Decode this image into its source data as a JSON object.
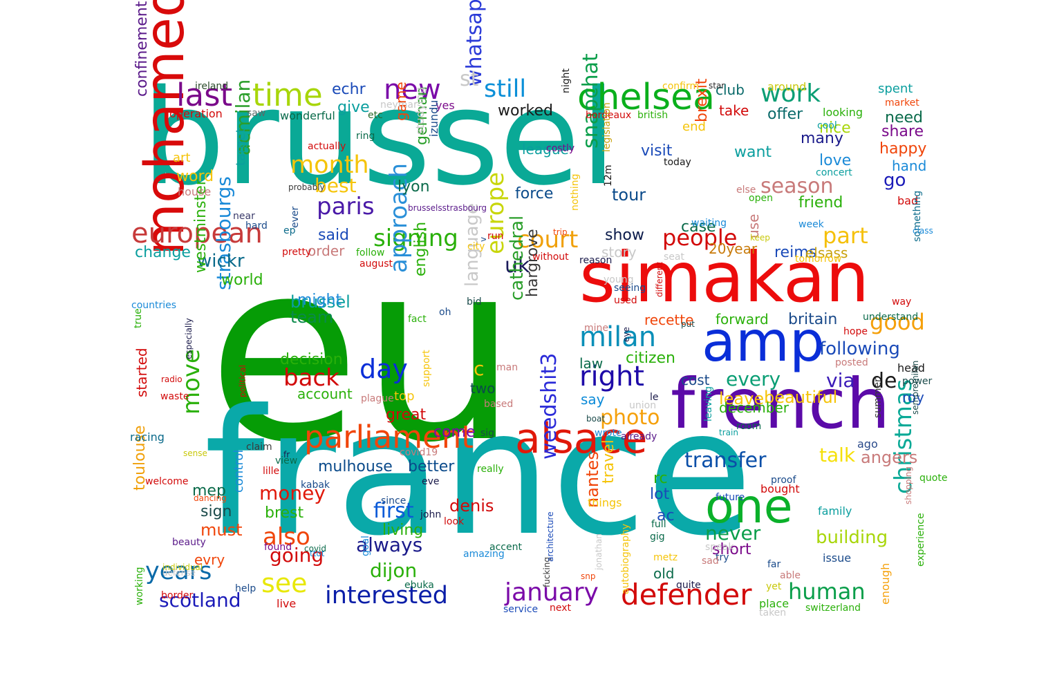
{
  "words": [
    {
      "text": "eu",
      "color": "#069c06"
    },
    {
      "text": "brussel",
      "color": "#0aa996"
    },
    {
      "text": "france",
      "color": "#0aa9a9"
    },
    {
      "text": "simakan",
      "color": "#ec0c0c"
    },
    {
      "text": "french",
      "color": "#5b0aa8"
    },
    {
      "text": "amp",
      "color": "#0a2ed8"
    },
    {
      "text": "mohamed",
      "color": "#d80a0a"
    },
    {
      "text": "alsace",
      "color": "#e0180a"
    },
    {
      "text": "parliament",
      "color": "#f0450a"
    },
    {
      "text": "one",
      "color": "#0ab02a"
    },
    {
      "text": "chelsea",
      "color": "#0aaf1c"
    },
    {
      "text": "european",
      "color": "#c73a3a"
    },
    {
      "text": "defender",
      "color": "#d20a0a"
    },
    {
      "text": "interested",
      "color": "#0a1ea8"
    },
    {
      "text": "january",
      "color": "#7a0aa8"
    },
    {
      "text": "milan",
      "color": "#0a8fb8"
    },
    {
      "text": "right",
      "color": "#1e0aa8"
    },
    {
      "text": "transfer",
      "color": "#0a4fa8"
    },
    {
      "text": "years",
      "color": "#0a6aa8"
    },
    {
      "text": "last",
      "color": "#7a0a8a"
    },
    {
      "text": "time",
      "color": "#a8d60a"
    },
    {
      "text": "new",
      "color": "#7a0aa8"
    },
    {
      "text": "still",
      "color": "#0a8fd8"
    },
    {
      "text": "work",
      "color": "#0a9e74"
    },
    {
      "text": "signing",
      "color": "#2ab00a"
    },
    {
      "text": "court",
      "color": "#f0a00a"
    },
    {
      "text": "people",
      "color": "#d20a0a"
    },
    {
      "text": "part",
      "color": "#f5c00a"
    },
    {
      "text": "season",
      "color": "#c87a7a"
    },
    {
      "text": "month",
      "color": "#f5c40a"
    },
    {
      "text": "best",
      "color": "#f5c40a"
    },
    {
      "text": "paris",
      "color": "#4a1aa8"
    },
    {
      "text": "day",
      "color": "#0a2ed8"
    },
    {
      "text": "back",
      "color": "#d20a0a"
    },
    {
      "text": "europe",
      "color": "#c8d60a"
    },
    {
      "text": "approach",
      "color": "#2a8fd8"
    },
    {
      "text": "whatsapp",
      "color": "#2a3ad8"
    },
    {
      "text": "snapchat",
      "color": "#0a9e4a"
    },
    {
      "text": "uk",
      "color": "#1a1a5a"
    },
    {
      "text": "photo",
      "color": "#f5a00a"
    },
    {
      "text": "see",
      "color": "#e8e80a"
    },
    {
      "text": "first",
      "color": "#0a5ad8"
    },
    {
      "text": "also",
      "color": "#f0450a"
    },
    {
      "text": "going",
      "color": "#d20a0a"
    },
    {
      "text": "money",
      "color": "#e0180a"
    },
    {
      "text": "always",
      "color": "#1a1a8a"
    },
    {
      "text": "dijon",
      "color": "#2ab00a"
    },
    {
      "text": "scotland",
      "color": "#1a1ab8"
    },
    {
      "text": "human",
      "color": "#0a9e4a"
    },
    {
      "text": "christmas",
      "color": "#0aa996"
    },
    {
      "text": "good",
      "color": "#f5a00a"
    },
    {
      "text": "following",
      "color": "#1a4ab8"
    },
    {
      "text": "weedshit3",
      "color": "#2a2ad8"
    },
    {
      "text": "move",
      "color": "#2ab00a"
    },
    {
      "text": "strasbourgs",
      "color": "#1a8ad8"
    },
    {
      "text": "acmilan",
      "color": "#2a9e2a"
    },
    {
      "text": "wickr",
      "color": "#0a6a8a"
    },
    {
      "text": "brussel",
      "color": "#0a9e9e"
    },
    {
      "text": "talk",
      "color": "#f5e00a"
    },
    {
      "text": "every",
      "color": "#0a9e74"
    },
    {
      "text": "via",
      "color": "#3a1ab8"
    },
    {
      "text": "beautiful",
      "color": "#f5c40a"
    },
    {
      "text": "leave",
      "color": "#f5c40a"
    },
    {
      "text": "never",
      "color": "#0a9e4a"
    },
    {
      "text": "short",
      "color": "#7a0a8a"
    },
    {
      "text": "building",
      "color": "#a8d60a"
    },
    {
      "text": "angers",
      "color": "#c87a7a"
    },
    {
      "text": "confinement",
      "color": "#5a1a8a"
    },
    {
      "text": "toulouse",
      "color": "#f0a00a"
    },
    {
      "text": "must",
      "color": "#f0450a"
    },
    {
      "text": "brest",
      "color": "#2ab00a"
    },
    {
      "text": "sign",
      "color": "#1a4a4a"
    },
    {
      "text": "living",
      "color": "#2ab00a"
    },
    {
      "text": "denis",
      "color": "#d20a0a"
    },
    {
      "text": "nantes",
      "color": "#f0450a"
    },
    {
      "text": "travel",
      "color": "#f5c40a"
    },
    {
      "text": "ac",
      "color": "#1a4ab8"
    },
    {
      "text": "lot",
      "color": "#1a4ab8"
    },
    {
      "text": "old",
      "color": "#0a6a4a"
    },
    {
      "text": "rc",
      "color": "#2ab00a"
    },
    {
      "text": "great",
      "color": "#d20a0a"
    },
    {
      "text": "mulhouse",
      "color": "#0a4a8a"
    },
    {
      "text": "better",
      "color": "#0a4a8a"
    },
    {
      "text": "come",
      "color": "#7a0aa8"
    },
    {
      "text": "two",
      "color": "#0a4a4a"
    },
    {
      "text": "top",
      "color": "#f5c40a"
    },
    {
      "text": "account",
      "color": "#2ab00a"
    },
    {
      "text": "decision",
      "color": "#2ab00a"
    },
    {
      "text": "team",
      "color": "#0a8a4a"
    },
    {
      "text": "might",
      "color": "#1a8ad8"
    },
    {
      "text": "cathedral",
      "color": "#2a9e2a"
    },
    {
      "text": "hargrove",
      "color": "#3a3a3a"
    },
    {
      "text": "language",
      "color": "#c8c8c8"
    },
    {
      "text": "english",
      "color": "#2ab00a"
    },
    {
      "text": "world",
      "color": "#2ab00a"
    },
    {
      "text": "westminster",
      "color": "#2ab00a"
    },
    {
      "text": "change",
      "color": "#0a9e9e"
    },
    {
      "text": "said",
      "color": "#1a4ab8"
    },
    {
      "text": "order",
      "color": "#c87a7a"
    },
    {
      "text": "target",
      "color": "#0a9e9e"
    },
    {
      "text": "lyon",
      "color": "#0a6a4a"
    },
    {
      "text": "german",
      "color": "#2a9e2a"
    },
    {
      "text": "give",
      "color": "#0a9e9e"
    },
    {
      "text": "echr",
      "color": "#1a4ab8"
    },
    {
      "text": "worked",
      "color": "#1a1a1a"
    },
    {
      "text": "league",
      "color": "#0a9e9e"
    },
    {
      "text": "force",
      "color": "#0a4a8a"
    },
    {
      "text": "tour",
      "color": "#0a4a8a"
    },
    {
      "text": "visit",
      "color": "#1a4ab8"
    },
    {
      "text": "show",
      "color": "#0a1a4a"
    },
    {
      "text": "story",
      "color": "#c8c8c8"
    },
    {
      "text": "brexit",
      "color": "#f0450a"
    },
    {
      "text": "case",
      "color": "#0a6a4a"
    },
    {
      "text": "nice",
      "color": "#a8d60a"
    },
    {
      "text": "many",
      "color": "#1a1a8a"
    },
    {
      "text": "love",
      "color": "#1a8ad8"
    },
    {
      "text": "go",
      "color": "#1a1ab8"
    },
    {
      "text": "want",
      "color": "#0a9e9e"
    },
    {
      "text": "friend",
      "color": "#2ab00a"
    },
    {
      "text": "reims",
      "color": "#1a4ab8"
    },
    {
      "text": "elsass",
      "color": "#c8a00a"
    },
    {
      "text": "20year",
      "color": "#c87a0a"
    },
    {
      "text": "use",
      "color": "#c87a7a"
    },
    {
      "text": "recette",
      "color": "#f0450a"
    },
    {
      "text": "forward",
      "color": "#2ab00a"
    },
    {
      "text": "britain",
      "color": "#1a4a8a"
    },
    {
      "text": "citizen",
      "color": "#2ab00a"
    },
    {
      "text": "law",
      "color": "#0a6a4a"
    },
    {
      "text": "cost",
      "color": "#1a4a8a"
    },
    {
      "text": "say",
      "color": "#0a8ad8"
    },
    {
      "text": "de",
      "color": "#1a1a1a"
    },
    {
      "text": "roy",
      "color": "#1a4ab8"
    },
    {
      "text": "need",
      "color": "#0a6a4a"
    },
    {
      "text": "share",
      "color": "#7a0a8a"
    },
    {
      "text": "happy",
      "color": "#f0450a"
    },
    {
      "text": "hand",
      "color": "#1a8ad8"
    },
    {
      "text": "offer",
      "color": "#0a6a6a"
    },
    {
      "text": "club",
      "color": "#0a6a6a"
    },
    {
      "text": "take",
      "color": "#d20a0a"
    },
    {
      "text": "end",
      "color": "#f5c40a"
    },
    {
      "text": "art",
      "color": "#f5c40a"
    },
    {
      "text": "word",
      "color": "#f5c40a"
    },
    {
      "text": "house",
      "color": "#c87a7a"
    },
    {
      "text": "operation",
      "color": "#d20a0a"
    },
    {
      "text": "wonderful",
      "color": "#0a6a4a"
    },
    {
      "text": "actually",
      "color": "#d20a0a"
    },
    {
      "text": "ring",
      "color": "#0a6a4a"
    },
    {
      "text": "etc",
      "color": "#2a6a2a"
    },
    {
      "text": "yes",
      "color": "#7a0a8a"
    },
    {
      "text": "st",
      "color": "#c8c8c8"
    },
    {
      "text": "game",
      "color": "#f0450a"
    },
    {
      "text": "studying",
      "color": "#c8c8c8"
    },
    {
      "text": "izundu",
      "color": "#1a4a8a"
    },
    {
      "text": "neymar",
      "color": "#c8c8c8"
    },
    {
      "text": "ireland",
      "color": "#2a4a2a"
    },
    {
      "text": "saw",
      "color": "#5a6a6a"
    },
    {
      "text": "near",
      "color": "#3a3a6a"
    },
    {
      "text": "spent",
      "color": "#0a9e9e"
    },
    {
      "text": "market",
      "color": "#f0450a"
    },
    {
      "text": "around",
      "color": "#c8c80a"
    },
    {
      "text": "confirm",
      "color": "#f5c40a"
    },
    {
      "text": "star",
      "color": "#2a2a2a"
    },
    {
      "text": "bordeaux",
      "color": "#d20a0a"
    },
    {
      "text": "british",
      "color": "#2ab00a"
    },
    {
      "text": "looking",
      "color": "#2ab00a"
    },
    {
      "text": "cool",
      "color": "#0a9e9e"
    },
    {
      "text": "concert",
      "color": "#0a9e9e"
    },
    {
      "text": "today",
      "color": "#1a1a1a"
    },
    {
      "text": "costly",
      "color": "#7a0a8a"
    },
    {
      "text": "legislation",
      "color": "#c8a00a"
    },
    {
      "text": "12m",
      "color": "#1a1a1a"
    },
    {
      "text": "night",
      "color": "#1a1a1a"
    },
    {
      "text": "else",
      "color": "#c87a7a"
    },
    {
      "text": "open",
      "color": "#2ab00a"
    },
    {
      "text": "bad",
      "color": "#d20a0a"
    },
    {
      "text": "something",
      "color": "#0a6a8a"
    },
    {
      "text": "class",
      "color": "#1a8ad8"
    },
    {
      "text": "week",
      "color": "#1a8ad8"
    },
    {
      "text": "waiting",
      "color": "#1a8ad8"
    },
    {
      "text": "keep",
      "color": "#c8c80a"
    },
    {
      "text": "tomorrow",
      "color": "#f5c40a"
    },
    {
      "text": "way",
      "color": "#d20a0a"
    },
    {
      "text": "understand",
      "color": "#0a6a4a"
    },
    {
      "text": "hope",
      "color": "#d20a0a"
    },
    {
      "text": "posted",
      "color": "#c87a7a"
    },
    {
      "text": "head",
      "color": "#1a1a1a"
    },
    {
      "text": "power",
      "color": "#1a4a4a"
    },
    {
      "text": "sempremilan",
      "color": "#1a4a4a"
    },
    {
      "text": "summer",
      "color": "#3a3a3a"
    },
    {
      "text": "ago",
      "color": "#2a4a8a"
    },
    {
      "text": "quote",
      "color": "#2ab00a"
    },
    {
      "text": "shopping",
      "color": "#c87a7a"
    },
    {
      "text": "family",
      "color": "#0a9e9e"
    },
    {
      "text": "experience",
      "color": "#2ab00a"
    },
    {
      "text": "enough",
      "color": "#f5a00a"
    },
    {
      "text": "issue",
      "color": "#1a4a8a"
    },
    {
      "text": "able",
      "color": "#c87a7a"
    },
    {
      "text": "far",
      "color": "#1a4a8a"
    },
    {
      "text": "yet",
      "color": "#c8c80a"
    },
    {
      "text": "place",
      "color": "#2ab00a"
    },
    {
      "text": "taken",
      "color": "#c8c8c8"
    },
    {
      "text": "switzerland",
      "color": "#2ab00a"
    },
    {
      "text": "future",
      "color": "#1a4ab8"
    },
    {
      "text": "bought",
      "color": "#d20a0a"
    },
    {
      "text": "proof",
      "color": "#1a4a8a"
    },
    {
      "text": "try",
      "color": "#1a4a8a"
    },
    {
      "text": "sad",
      "color": "#c87a7a"
    },
    {
      "text": "speak",
      "color": "#c8c8c8"
    },
    {
      "text": "metz",
      "color": "#f5c40a"
    },
    {
      "text": "gig",
      "color": "#0a6a4a"
    },
    {
      "text": "full",
      "color": "#0a6a4a"
    },
    {
      "text": "quite",
      "color": "#1a1a4a"
    },
    {
      "text": "next",
      "color": "#d20a0a"
    },
    {
      "text": "service",
      "color": "#1a4ab8"
    },
    {
      "text": "autobiography",
      "color": "#f5c40a"
    },
    {
      "text": "jonathan",
      "color": "#c8c8c8"
    },
    {
      "text": "things",
      "color": "#f5c40a"
    },
    {
      "text": "snp",
      "color": "#f0450a"
    },
    {
      "text": "fucking",
      "color": "#3a3a3a"
    },
    {
      "text": "architecture",
      "color": "#1a4ab8"
    },
    {
      "text": "amazing",
      "color": "#1a8ad8"
    },
    {
      "text": "accent",
      "color": "#0a6a4a"
    },
    {
      "text": "ebuka",
      "color": "#0a6a4a"
    },
    {
      "text": "goal",
      "color": "#1a8ad8"
    },
    {
      "text": "since",
      "color": "#1a4a8a"
    },
    {
      "text": "look",
      "color": "#d20a0a"
    },
    {
      "text": "john",
      "color": "#1a1a4a"
    },
    {
      "text": "eve",
      "color": "#1a1a4a"
    },
    {
      "text": "really",
      "color": "#2ab00a"
    },
    {
      "text": "kabak",
      "color": "#1a4a8a"
    },
    {
      "text": "lille",
      "color": "#d20a0a"
    },
    {
      "text": "view",
      "color": "#0a6a4a"
    },
    {
      "text": "fr",
      "color": "#1a1a4a"
    },
    {
      "text": "ttot",
      "color": "#1a8ad8"
    },
    {
      "text": "found",
      "color": "#7a0a8a"
    },
    {
      "text": "covid",
      "color": "#0a6a4a"
    },
    {
      "text": "defense",
      "color": "#c8c8c8"
    },
    {
      "text": "live",
      "color": "#d20a0a"
    },
    {
      "text": "help",
      "color": "#1a4a8a"
    },
    {
      "text": "border",
      "color": "#d20a0a"
    },
    {
      "text": "working",
      "color": "#2ab00a"
    },
    {
      "text": "individual",
      "color": "#c8c80a"
    },
    {
      "text": "beauty",
      "color": "#5a1a8a"
    },
    {
      "text": "evry",
      "color": "#f0450a"
    },
    {
      "text": "mep",
      "color": "#0a6a4a"
    },
    {
      "text": "dancing",
      "color": "#f0450a"
    },
    {
      "text": "welcome",
      "color": "#d20a0a"
    },
    {
      "text": "control",
      "color": "#1a8ad8"
    },
    {
      "text": "sense",
      "color": "#c8c80a"
    },
    {
      "text": "racing",
      "color": "#0a6a8a"
    },
    {
      "text": "claim",
      "color": "#3a3a3a"
    },
    {
      "text": "political",
      "color": "#d20a0a"
    },
    {
      "text": "waste",
      "color": "#d20a0a"
    },
    {
      "text": "radio",
      "color": "#d20a0a"
    },
    {
      "text": "started",
      "color": "#d20a0a"
    },
    {
      "text": "especially",
      "color": "#1a1a4a"
    },
    {
      "text": "true",
      "color": "#2ab00a"
    },
    {
      "text": "countries",
      "color": "#1a8ad8"
    },
    {
      "text": "plague",
      "color": "#c87a7a"
    },
    {
      "text": "support",
      "color": "#f5c40a"
    },
    {
      "text": "fact",
      "color": "#2ab00a"
    },
    {
      "text": "c",
      "color": "#f5c40a"
    },
    {
      "text": "based",
      "color": "#c87a7a"
    },
    {
      "text": "covid19",
      "color": "#c87a7a"
    },
    {
      "text": "sig",
      "color": "#1a4a4a"
    },
    {
      "text": "oh",
      "color": "#1a4a8a"
    },
    {
      "text": "bid",
      "color": "#1a4a4a"
    },
    {
      "text": "follow",
      "color": "#2ab00a"
    },
    {
      "text": "august",
      "color": "#d20a0a"
    },
    {
      "text": "pretty",
      "color": "#d20a0a"
    },
    {
      "text": "city",
      "color": "#f5c40a"
    },
    {
      "text": "run",
      "color": "#d20a0a"
    },
    {
      "text": "trip",
      "color": "#f0450a"
    },
    {
      "text": "nothing",
      "color": "#f5c40a"
    },
    {
      "text": "without",
      "color": "#d20a0a"
    },
    {
      "text": "reason",
      "color": "#1a1a4a"
    },
    {
      "text": "young",
      "color": "#c8c8c8"
    },
    {
      "text": "seeing",
      "color": "#1a4a8a"
    },
    {
      "text": "different",
      "color": "#d20a0a"
    },
    {
      "text": "seat",
      "color": "#c8c8c8"
    },
    {
      "text": "used",
      "color": "#d20a0a"
    },
    {
      "text": "mine",
      "color": "#c87a7a"
    },
    {
      "text": "eye",
      "color": "#1a1a4a"
    },
    {
      "text": "put",
      "color": "#1a4a4a"
    },
    {
      "text": "union",
      "color": "#c8c8c8"
    },
    {
      "text": "le",
      "color": "#1a1a4a"
    },
    {
      "text": "boat",
      "color": "#1a4a4a"
    },
    {
      "text": "wrote",
      "color": "#1a8ad8"
    },
    {
      "text": "already",
      "color": "#5a1a8a"
    },
    {
      "text": "leaving",
      "color": "#0a9e9e"
    },
    {
      "text": "train",
      "color": "#0a9e9e"
    },
    {
      "text": "room",
      "color": "#0a6a4a"
    },
    {
      "text": "december",
      "color": "#2ab00a"
    },
    {
      "text": "ep",
      "color": "#0a6a8a"
    },
    {
      "text": "probably",
      "color": "#3a3a3a"
    },
    {
      "text": "ever",
      "color": "#1a4a8a"
    },
    {
      "text": "hard",
      "color": "#1a4a8a"
    },
    {
      "text": "brusselsstrasbourg",
      "color": "#5a1a8a"
    },
    {
      "text": "v",
      "color": "#1a4a8a"
    },
    {
      "text": "man",
      "color": "#c87a7a"
    }
  ]
}
